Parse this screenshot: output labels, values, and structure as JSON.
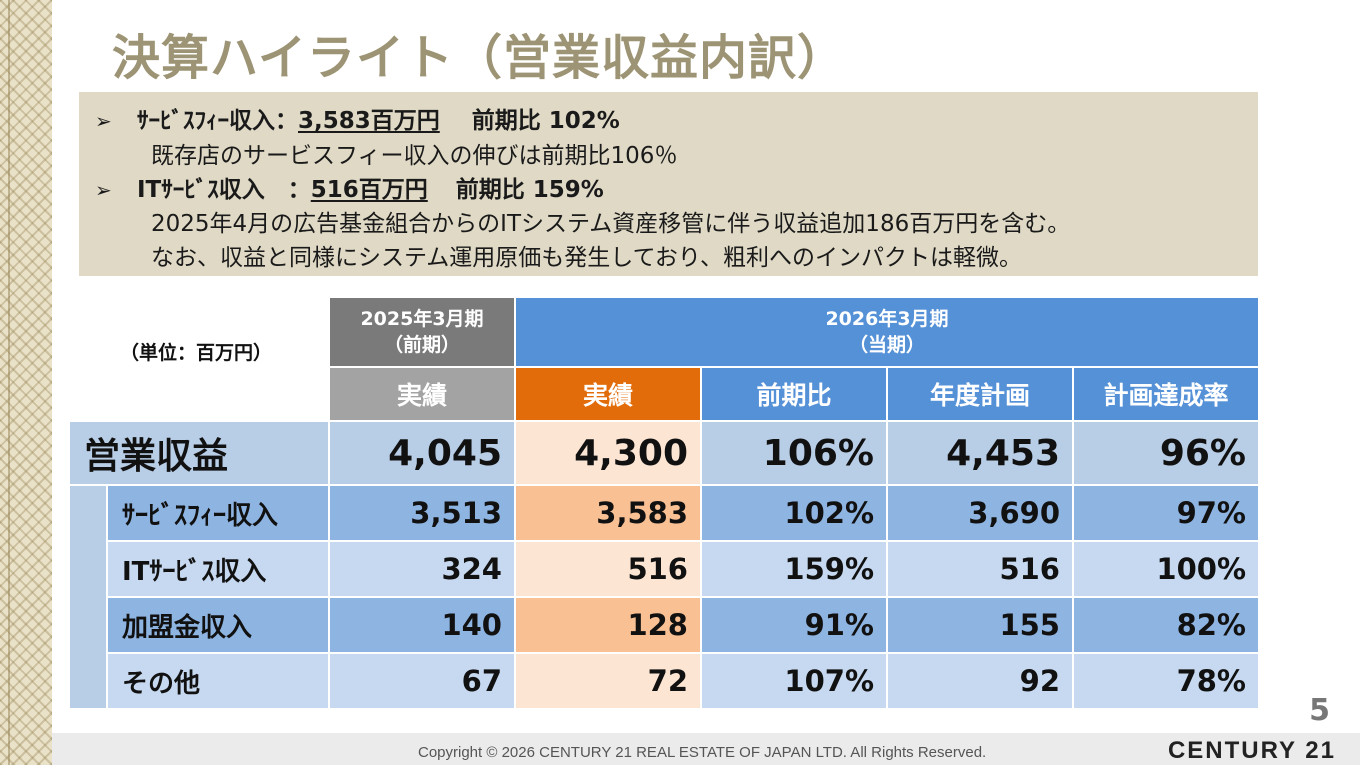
{
  "title": "決算ハイライト（営業収益内訳）",
  "summary": {
    "line1_bullet": "➢",
    "line1_prefix": "ｻｰﾋﾞｽﾌｨｰ収入：",
    "line1_amount": "3,583百万円",
    "line1_suffix": "前期比 102%",
    "line2": "既存店のサービスフィー収入の伸びは前期比106％",
    "line3_bullet": "➢",
    "line3_prefix": "ITｻｰﾋﾞｽ収入　：",
    "line3_amount": "516百万円",
    "line3_suffix": "前期比 159%",
    "line4": "2025年4月の広告基金組合からのITシステム資産移管に伴う収益追加186百万円を含む。",
    "line5": "なお、収益と同様にシステム運用原価も発生しており、粗利へのインパクトは軽微。"
  },
  "table": {
    "unit_label": "（単位：百万円）",
    "prev_period_line1": "2025年3月期",
    "prev_period_line2": "（前期）",
    "cur_period_line1": "2026年3月期",
    "cur_period_line2": "（当期）",
    "col_headers": [
      "実績",
      "実績",
      "前期比",
      "年度計画",
      "計画達成率"
    ],
    "main_row": {
      "label": "営業収益",
      "values": [
        "4,045",
        "4,300",
        "106%",
        "4,453",
        "96%"
      ]
    },
    "rows": [
      {
        "label": "ｻｰﾋﾞｽﾌｨｰ収入",
        "values": [
          "3,513",
          "3,583",
          "102%",
          "3,690",
          "97%"
        ]
      },
      {
        "label": "ITｻｰﾋﾞｽ収入",
        "values": [
          "324",
          "516",
          "159%",
          "516",
          "100%"
        ]
      },
      {
        "label": "加盟金収入",
        "values": [
          "140",
          "128",
          "91%",
          "155",
          "82%"
        ]
      },
      {
        "label": "その他",
        "values": [
          "67",
          "72",
          "107%",
          "92",
          "78%"
        ]
      }
    ]
  },
  "page_number": "5",
  "copyright": "Copyright © 2026 CENTURY 21 REAL ESTATE OF JAPAN LTD. All Rights Reserved.",
  "brand": "CENTURY 21"
}
